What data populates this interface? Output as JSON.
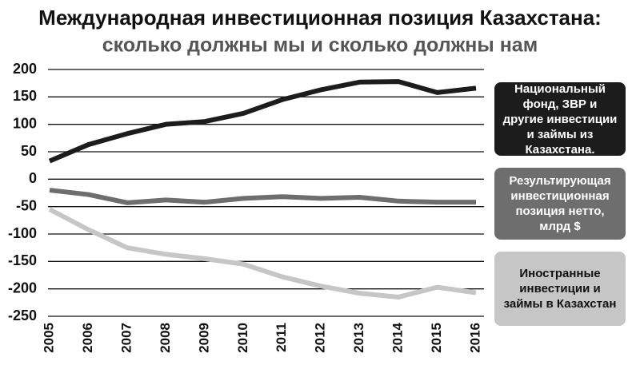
{
  "chart_data": {
    "type": "line",
    "title": "Международная инвестиционная позиция Казахстана:",
    "subtitle": "сколько должны мы и сколько должны нам",
    "categories": [
      "2005",
      "2006",
      "2007",
      "2008",
      "2009",
      "2010",
      "2011",
      "2012",
      "2013",
      "2014",
      "2015",
      "2016"
    ],
    "series": [
      {
        "name": "Национальный фонд, ЗВР и другие инвестиции и займы из Казахстана.",
        "color": "#1c1c1c",
        "values": [
          33,
          63,
          83,
          100,
          105,
          120,
          145,
          163,
          177,
          178,
          158,
          166
        ]
      },
      {
        "name": "Результирующая инвестиционная позиция нетто, млрд $",
        "color": "#6e6e6e",
        "values": [
          -20,
          -28,
          -43,
          -38,
          -42,
          -35,
          -32,
          -35,
          -33,
          -40,
          -42,
          -42
        ]
      },
      {
        "name": "Иностранные инвестиции и займы в Казахстан",
        "color": "#c6c6c6",
        "values": [
          -55,
          -92,
          -125,
          -137,
          -145,
          -155,
          -178,
          -195,
          -208,
          -215,
          -197,
          -207
        ]
      }
    ],
    "ylim": [
      -250,
      200
    ],
    "yticks": [
      200,
      150,
      100,
      50,
      0,
      -50,
      -100,
      -150,
      -200,
      -250
    ],
    "grid": true
  }
}
